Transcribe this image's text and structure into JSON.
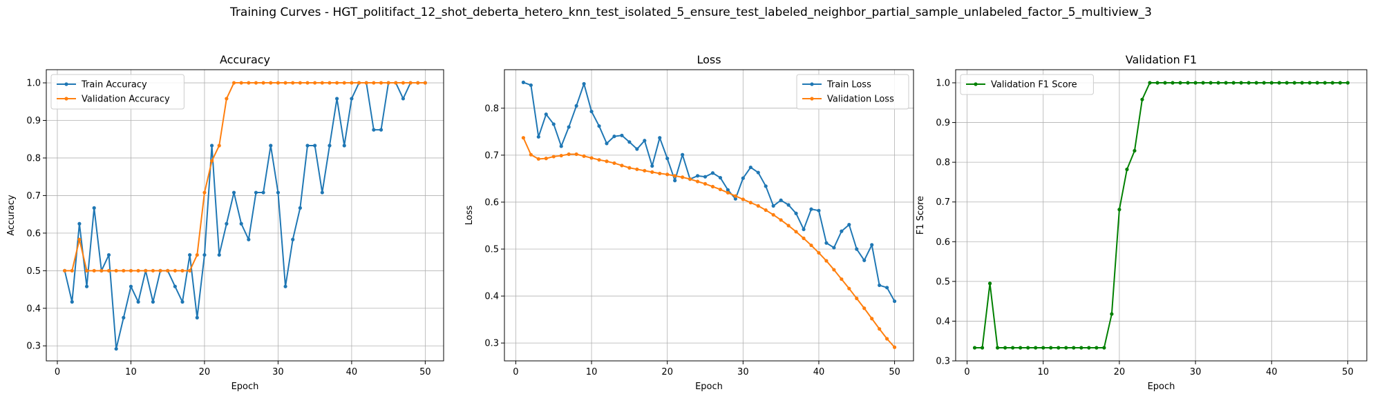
{
  "figure": {
    "suptitle": "Training Curves - HGT_politifact_12_shot_deberta_hetero_knn_test_isolated_5_ensure_test_labeled_neighbor_partial_sample_unlabeled_factor_5_multiview_3"
  },
  "chart_data": [
    {
      "type": "line",
      "title": "Accuracy",
      "xlabel": "Epoch",
      "ylabel": "Accuracy",
      "xlim": [
        -1.5,
        52.5
      ],
      "ylim": [
        0.26,
        1.035
      ],
      "xticks": [
        0,
        10,
        20,
        30,
        40,
        50
      ],
      "yticks": [
        0.3,
        0.4,
        0.5,
        0.6,
        0.7,
        0.8,
        0.9,
        1.0
      ],
      "ytick_labels": [
        "0.3",
        "0.4",
        "0.5",
        "0.6",
        "0.7",
        "0.8",
        "0.9",
        "1.0"
      ],
      "grid": true,
      "legend": "upper left",
      "x": [
        1,
        2,
        3,
        4,
        5,
        6,
        7,
        8,
        9,
        10,
        11,
        12,
        13,
        14,
        15,
        16,
        17,
        18,
        19,
        20,
        21,
        22,
        23,
        24,
        25,
        26,
        27,
        28,
        29,
        30,
        31,
        32,
        33,
        34,
        35,
        36,
        37,
        38,
        39,
        40,
        41,
        42,
        43,
        44,
        45,
        46,
        47,
        48,
        49,
        50
      ],
      "series": [
        {
          "name": "Train Accuracy",
          "color": "#1f77b4",
          "values": [
            0.5,
            0.417,
            0.625,
            0.458,
            0.667,
            0.5,
            0.542,
            0.292,
            0.375,
            0.458,
            0.417,
            0.5,
            0.417,
            0.5,
            0.5,
            0.458,
            0.417,
            0.542,
            0.375,
            0.542,
            0.833,
            0.542,
            0.625,
            0.708,
            0.625,
            0.583,
            0.708,
            0.708,
            0.833,
            0.708,
            0.458,
            0.583,
            0.667,
            0.833,
            0.833,
            0.708,
            0.833,
            0.958,
            0.833,
            0.958,
            1.0,
            1.0,
            0.875,
            0.875,
            1.0,
            1.0,
            0.958,
            1.0,
            1.0,
            1.0
          ]
        },
        {
          "name": "Validation Accuracy",
          "color": "#ff7f0e",
          "values": [
            0.5,
            0.5,
            0.583,
            0.5,
            0.5,
            0.5,
            0.5,
            0.5,
            0.5,
            0.5,
            0.5,
            0.5,
            0.5,
            0.5,
            0.5,
            0.5,
            0.5,
            0.5,
            0.542,
            0.708,
            0.792,
            0.833,
            0.958,
            1.0,
            1.0,
            1.0,
            1.0,
            1.0,
            1.0,
            1.0,
            1.0,
            1.0,
            1.0,
            1.0,
            1.0,
            1.0,
            1.0,
            1.0,
            1.0,
            1.0,
            1.0,
            1.0,
            1.0,
            1.0,
            1.0,
            1.0,
            1.0,
            1.0,
            1.0,
            1.0
          ]
        }
      ]
    },
    {
      "type": "line",
      "title": "Loss",
      "xlabel": "Epoch",
      "ylabel": "Loss",
      "xlim": [
        -1.5,
        52.5
      ],
      "ylim": [
        0.262,
        0.882
      ],
      "xticks": [
        0,
        10,
        20,
        30,
        40,
        50
      ],
      "yticks": [
        0.3,
        0.4,
        0.5,
        0.6,
        0.7,
        0.8
      ],
      "ytick_labels": [
        "0.3",
        "0.4",
        "0.5",
        "0.6",
        "0.7",
        "0.8"
      ],
      "grid": true,
      "legend": "upper right",
      "x": [
        1,
        2,
        3,
        4,
        5,
        6,
        7,
        8,
        9,
        10,
        11,
        12,
        13,
        14,
        15,
        16,
        17,
        18,
        19,
        20,
        21,
        22,
        23,
        24,
        25,
        26,
        27,
        28,
        29,
        30,
        31,
        32,
        33,
        34,
        35,
        36,
        37,
        38,
        39,
        40,
        41,
        42,
        43,
        44,
        45,
        46,
        47,
        48,
        49,
        50
      ],
      "series": [
        {
          "name": "Train Loss",
          "color": "#1f77b4",
          "values": [
            0.855,
            0.849,
            0.739,
            0.787,
            0.766,
            0.719,
            0.76,
            0.805,
            0.852,
            0.793,
            0.762,
            0.725,
            0.74,
            0.742,
            0.728,
            0.713,
            0.731,
            0.677,
            0.737,
            0.693,
            0.646,
            0.701,
            0.649,
            0.656,
            0.654,
            0.662,
            0.652,
            0.626,
            0.607,
            0.651,
            0.674,
            0.663,
            0.634,
            0.592,
            0.604,
            0.594,
            0.576,
            0.542,
            0.585,
            0.582,
            0.513,
            0.503,
            0.538,
            0.552,
            0.5,
            0.476,
            0.509,
            0.423,
            0.418,
            0.389
          ]
        },
        {
          "name": "Validation Loss",
          "color": "#ff7f0e",
          "values": [
            0.737,
            0.701,
            0.692,
            0.693,
            0.697,
            0.699,
            0.702,
            0.702,
            0.698,
            0.694,
            0.69,
            0.687,
            0.683,
            0.678,
            0.673,
            0.67,
            0.667,
            0.664,
            0.661,
            0.659,
            0.656,
            0.653,
            0.649,
            0.644,
            0.639,
            0.633,
            0.627,
            0.62,
            0.613,
            0.606,
            0.599,
            0.592,
            0.583,
            0.573,
            0.562,
            0.55,
            0.537,
            0.523,
            0.508,
            0.492,
            0.475,
            0.456,
            0.436,
            0.416,
            0.395,
            0.374,
            0.352,
            0.33,
            0.309,
            0.291
          ]
        }
      ]
    },
    {
      "type": "line",
      "title": "Validation F1",
      "xlabel": "Epoch",
      "ylabel": "F1 Score",
      "xlim": [
        -1.5,
        52.5
      ],
      "ylim": [
        0.3,
        1.033
      ],
      "xticks": [
        0,
        10,
        20,
        30,
        40,
        50
      ],
      "yticks": [
        0.3,
        0.4,
        0.5,
        0.6,
        0.7,
        0.8,
        0.9,
        1.0
      ],
      "ytick_labels": [
        "0.3",
        "0.4",
        "0.5",
        "0.6",
        "0.7",
        "0.8",
        "0.9",
        "1.0"
      ],
      "grid": true,
      "legend": "upper left",
      "x": [
        1,
        2,
        3,
        4,
        5,
        6,
        7,
        8,
        9,
        10,
        11,
        12,
        13,
        14,
        15,
        16,
        17,
        18,
        19,
        20,
        21,
        22,
        23,
        24,
        25,
        26,
        27,
        28,
        29,
        30,
        31,
        32,
        33,
        34,
        35,
        36,
        37,
        38,
        39,
        40,
        41,
        42,
        43,
        44,
        45,
        46,
        47,
        48,
        49,
        50
      ],
      "series": [
        {
          "name": "Validation F1 Score",
          "color": "#008000",
          "values": [
            0.333,
            0.333,
            0.495,
            0.333,
            0.333,
            0.333,
            0.333,
            0.333,
            0.333,
            0.333,
            0.333,
            0.333,
            0.333,
            0.333,
            0.333,
            0.333,
            0.333,
            0.333,
            0.418,
            0.681,
            0.782,
            0.829,
            0.958,
            1.0,
            1.0,
            1.0,
            1.0,
            1.0,
            1.0,
            1.0,
            1.0,
            1.0,
            1.0,
            1.0,
            1.0,
            1.0,
            1.0,
            1.0,
            1.0,
            1.0,
            1.0,
            1.0,
            1.0,
            1.0,
            1.0,
            1.0,
            1.0,
            1.0,
            1.0,
            1.0
          ]
        }
      ]
    }
  ]
}
